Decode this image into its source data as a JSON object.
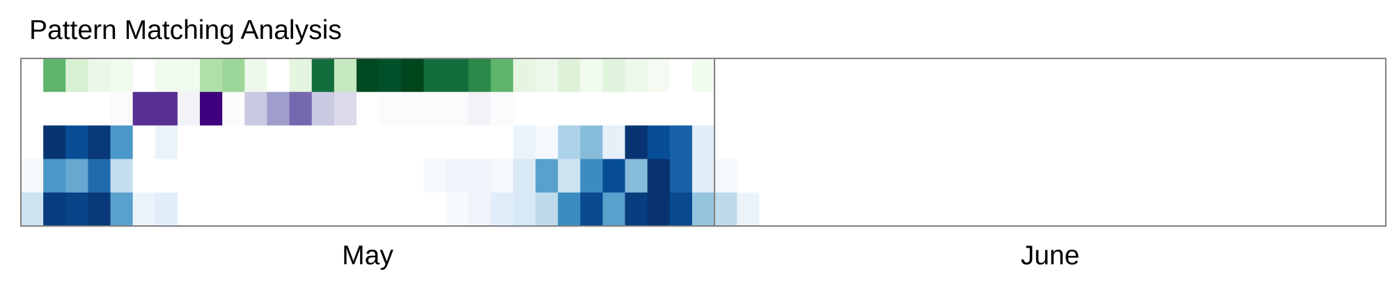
{
  "chart_data": {
    "type": "heatmap",
    "title": "Pattern Matching Analysis",
    "xlabel": "",
    "ylabel": "",
    "x_labels": [
      "May",
      "June"
    ],
    "days_per_month": [
      31,
      30
    ],
    "value_range": [
      0,
      1
    ],
    "grid": false,
    "legend": "none",
    "rows": [
      {
        "colormap": "greens",
        "palette": [
          "#ffffff",
          "#ddf2d8",
          "#a5db9f",
          "#47a85a",
          "#005a32",
          "#00441b"
        ],
        "values": [
          0,
          0.55,
          0.22,
          0.12,
          0.08,
          0,
          0.08,
          0.08,
          0.36,
          0.42,
          0.1,
          0,
          0.16,
          0.75,
          0.28,
          0.95,
          0.88,
          0.98,
          0.75,
          0.75,
          0.68,
          0.55,
          0.15,
          0.1,
          0.2,
          0.08,
          0.18,
          0.1,
          0.06,
          0,
          0.08,
          0,
          0,
          0,
          0,
          0,
          0,
          0,
          0,
          0,
          0,
          0,
          0,
          0,
          0,
          0,
          0,
          0,
          0,
          0,
          0,
          0,
          0,
          0,
          0,
          0,
          0,
          0,
          0,
          0,
          0
        ]
      },
      {
        "colormap": "purples",
        "palette": [
          "#ffffff",
          "#efedf5",
          "#bcbddc",
          "#807dba",
          "#54278f",
          "#3f007d"
        ],
        "values": [
          0,
          0,
          0,
          0,
          0.05,
          0.78,
          0.78,
          0.15,
          1.0,
          0.05,
          0.35,
          0.5,
          0.65,
          0.35,
          0.28,
          0,
          0.05,
          0.05,
          0.05,
          0.05,
          0.15,
          0.05,
          0,
          0,
          0,
          0,
          0,
          0,
          0,
          0,
          0,
          0,
          0,
          0,
          0,
          0,
          0,
          0,
          0,
          0,
          0,
          0,
          0,
          0,
          0,
          0,
          0,
          0,
          0,
          0,
          0,
          0,
          0,
          0,
          0,
          0,
          0,
          0,
          0,
          0,
          0
        ]
      },
      {
        "colormap": "blues",
        "palette": [
          "#ffffff",
          "#deebf7",
          "#9ecae1",
          "#4292c6",
          "#08519c",
          "#08306b"
        ],
        "values": [
          0,
          0.97,
          0.82,
          0.95,
          0.58,
          0,
          0.12,
          0,
          0,
          0,
          0,
          0,
          0,
          0,
          0,
          0,
          0,
          0,
          0,
          0,
          0,
          0,
          0.12,
          0.06,
          0.35,
          0.45,
          0.15,
          0.97,
          0.82,
          0.75,
          0.18,
          0,
          0,
          0,
          0,
          0,
          0,
          0,
          0,
          0,
          0,
          0,
          0,
          0,
          0,
          0,
          0,
          0,
          0,
          0,
          0,
          0,
          0,
          0,
          0,
          0,
          0,
          0,
          0,
          0,
          0
        ]
      },
      {
        "colormap": "blues",
        "palette": [
          "#ffffff",
          "#deebf7",
          "#9ecae1",
          "#4292c6",
          "#08519c",
          "#08306b"
        ],
        "values": [
          0.06,
          0.58,
          0.52,
          0.72,
          0.28,
          0,
          0,
          0,
          0,
          0,
          0,
          0,
          0,
          0,
          0,
          0,
          0,
          0,
          0.06,
          0.1,
          0.1,
          0.06,
          0.22,
          0.55,
          0.25,
          0.62,
          0.82,
          0.45,
          0.98,
          0.75,
          0.18,
          0.06,
          0,
          0,
          0,
          0,
          0,
          0,
          0,
          0,
          0,
          0,
          0,
          0,
          0,
          0,
          0,
          0,
          0,
          0,
          0,
          0,
          0,
          0,
          0,
          0,
          0,
          0,
          0,
          0,
          0,
          0
        ]
      },
      {
        "colormap": "blues",
        "palette": [
          "#ffffff",
          "#deebf7",
          "#9ecae1",
          "#4292c6",
          "#08519c",
          "#08306b"
        ],
        "values": [
          0.25,
          0.92,
          0.88,
          0.95,
          0.55,
          0.12,
          0.18,
          0,
          0,
          0,
          0,
          0,
          0,
          0,
          0,
          0,
          0,
          0,
          0,
          0.04,
          0.1,
          0.18,
          0.22,
          0.3,
          0.62,
          0.85,
          0.55,
          0.92,
          0.98,
          0.85,
          0.42,
          0.3,
          0.12,
          0,
          0,
          0,
          0,
          0,
          0,
          0,
          0,
          0,
          0,
          0,
          0,
          0,
          0,
          0,
          0,
          0,
          0,
          0,
          0,
          0,
          0,
          0,
          0,
          0,
          0,
          0,
          0,
          0,
          0
        ]
      }
    ]
  }
}
